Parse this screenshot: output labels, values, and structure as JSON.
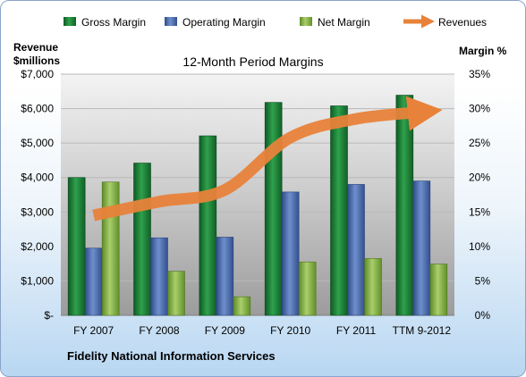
{
  "chart_data": {
    "type": "bar",
    "title": "12-Month Period Margins",
    "categories": [
      "FY 2007",
      "FY 2008",
      "FY 2009",
      "FY 2010",
      "FY 2011",
      "TTM 9-2012"
    ],
    "series": [
      {
        "name": "Gross Margin",
        "axis": "left",
        "values": [
          4000,
          4420,
          5210,
          6180,
          6080,
          6390
        ],
        "color": "#1f8a3b"
      },
      {
        "name": "Operating Margin",
        "axis": "left",
        "values": [
          1950,
          2250,
          2270,
          3580,
          3800,
          3900
        ],
        "color": "#4f6fb1"
      },
      {
        "name": "Net Margin",
        "axis": "left",
        "values": [
          3870,
          1280,
          540,
          1550,
          1650,
          1490
        ],
        "color": "#8ab24a"
      },
      {
        "name": "Revenues",
        "type": "line",
        "axis": "right",
        "values": [
          14.5,
          16.5,
          18.2,
          25.8,
          28.5,
          29.5
        ],
        "color": "#e8823a"
      }
    ],
    "y_left": {
      "label_line1": "Revenue",
      "label_line2": "$millions",
      "ylim": [
        0,
        7000
      ],
      "ticks": [
        "$-",
        "$1,000",
        "$2,000",
        "$3,000",
        "$4,000",
        "$5,000",
        "$6,000",
        "$7,000"
      ]
    },
    "y_right": {
      "label": "Margin %",
      "ylim": [
        0,
        35
      ],
      "ticks": [
        "0%",
        "5%",
        "10%",
        "15%",
        "20%",
        "25%",
        "30%",
        "35%"
      ]
    },
    "grid": true,
    "legend": "top"
  },
  "footer": "Fidelity National Information Services"
}
